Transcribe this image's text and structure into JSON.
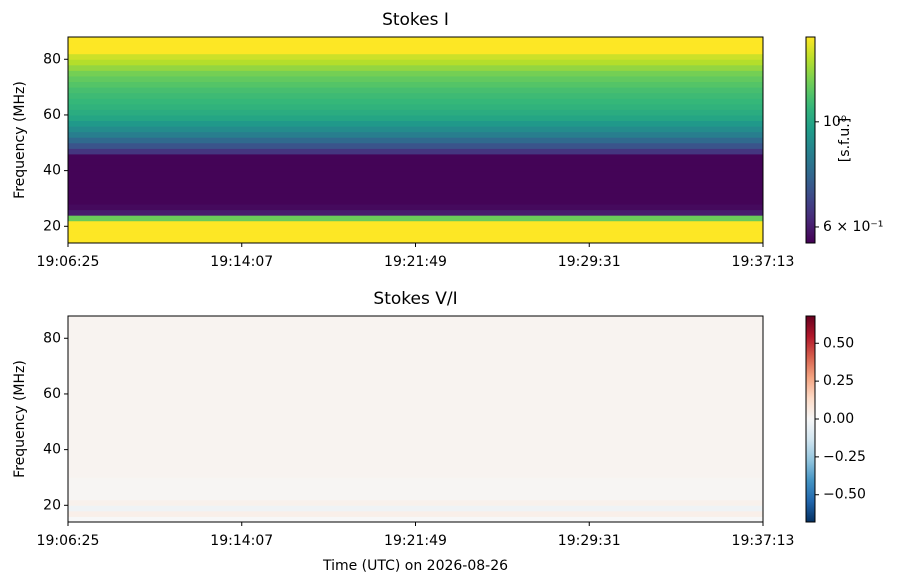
{
  "chart_data": [
    {
      "type": "heatmap",
      "title": "Stokes I",
      "ylabel": "Frequency (MHz)",
      "xlim": [
        "19:06:25",
        "19:37:13"
      ],
      "xticks": [
        "19:06:25",
        "19:14:07",
        "19:21:49",
        "19:29:31",
        "19:37:13"
      ],
      "ylim": [
        14,
        88
      ],
      "yticks": [
        20,
        40,
        60,
        80
      ],
      "frequencies": [
        14,
        16,
        18,
        20,
        22,
        24,
        26,
        28,
        30,
        32,
        34,
        36,
        38,
        40,
        42,
        44,
        46,
        48,
        50,
        52,
        54,
        56,
        58,
        60,
        62,
        64,
        66,
        68,
        70,
        72,
        74,
        76,
        78,
        80,
        82,
        84,
        86,
        88
      ],
      "values": [
        1.6,
        1.6,
        1.6,
        1.6,
        1.2,
        0.6,
        0.57,
        0.56,
        0.56,
        0.56,
        0.56,
        0.56,
        0.56,
        0.56,
        0.56,
        0.56,
        0.65,
        0.72,
        0.78,
        0.85,
        0.9,
        0.95,
        1.0,
        1.03,
        1.06,
        1.08,
        1.1,
        1.12,
        1.15,
        1.18,
        1.22,
        1.28,
        1.35,
        1.4,
        1.6,
        1.55,
        1.6
      ],
      "colormap": "viridis",
      "color_log": true,
      "clim": [
        0.555,
        1.51
      ],
      "colorbar_label": "[s.f.u.]",
      "cticks": [
        {
          "value": 1,
          "label": "10⁰"
        },
        {
          "value": 0.6,
          "label": "6 × 10⁻¹"
        }
      ]
    },
    {
      "type": "heatmap",
      "title": "Stokes V/I",
      "ylabel": "Frequency (MHz)",
      "xlabel": "Time (UTC) on 2026-08-26",
      "xlim": [
        "19:06:25",
        "19:37:13"
      ],
      "xticks": [
        "19:06:25",
        "19:14:07",
        "19:21:49",
        "19:29:31",
        "19:37:13"
      ],
      "ylim": [
        14,
        88
      ],
      "yticks": [
        20,
        40,
        60,
        80
      ],
      "frequencies": [
        14,
        16,
        18,
        20,
        22,
        24,
        26,
        28,
        30,
        32,
        34,
        36,
        38,
        40,
        42,
        44,
        46,
        48,
        50,
        52,
        54,
        56,
        58,
        60,
        62,
        64,
        66,
        68,
        70,
        72,
        74,
        76,
        78,
        80,
        82,
        84,
        86,
        88
      ],
      "values": [
        0.0,
        0.04,
        -0.03,
        0.03,
        0.01,
        0.01,
        0.01,
        0.01,
        0.02,
        0.02,
        0.02,
        0.02,
        0.02,
        0.02,
        0.02,
        0.02,
        0.02,
        0.02,
        0.02,
        0.02,
        0.02,
        0.02,
        0.02,
        0.02,
        0.02,
        0.02,
        0.02,
        0.02,
        0.02,
        0.02,
        0.02,
        0.02,
        0.02,
        0.02,
        0.02,
        0.02,
        0.02
      ],
      "colormap": "RdBu_r",
      "color_log": false,
      "clim": [
        -0.68,
        0.68
      ],
      "cticks": [
        {
          "value": 0.5,
          "label": "0.50"
        },
        {
          "value": 0.25,
          "label": "0.25"
        },
        {
          "value": 0,
          "label": "0.00"
        },
        {
          "value": -0.25,
          "label": "−0.25"
        },
        {
          "value": -0.5,
          "label": "−0.50"
        }
      ]
    }
  ]
}
